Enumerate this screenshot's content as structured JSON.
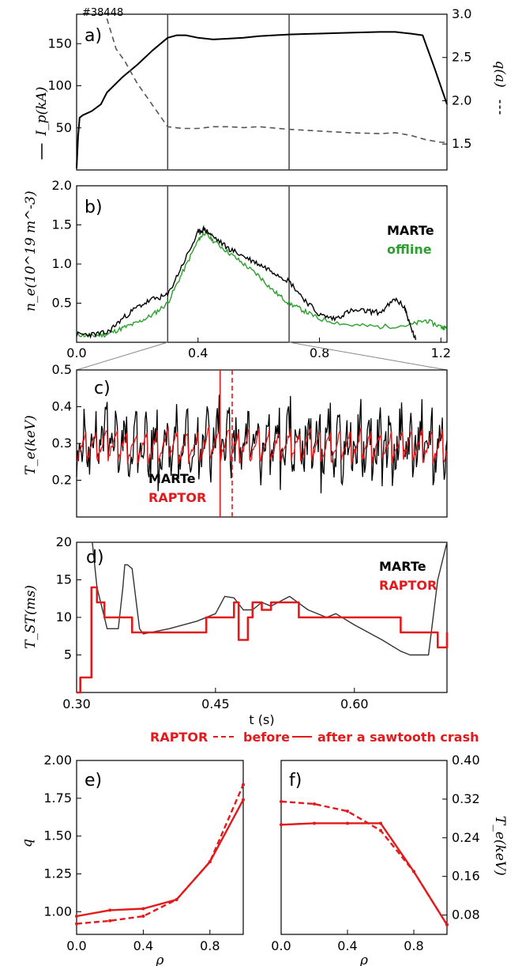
{
  "shot_label": "#38448",
  "caption": {
    "text": "RAPTOR - - -  before  —  after a sawtooth crash",
    "color": "#e31a1c"
  },
  "colors": {
    "black": "#000000",
    "red": "#e31a1c",
    "green": "#2ca02c",
    "gray": "#555555"
  },
  "chart_data": [
    {
      "id": "a",
      "panel_label": "a)",
      "type": "line",
      "ylabel_left": "I_p(kA)",
      "ylabel_right": "q(a)",
      "ylim_left": [
        0,
        185
      ],
      "ylim_right": [
        1.2,
        3.0
      ],
      "xlim": [
        0.0,
        1.22
      ],
      "yticks_left": [
        "50",
        "100",
        "150"
      ],
      "yticks_left_values": [
        50,
        100,
        150
      ],
      "yticks_right": [
        "1.5",
        "2.0",
        "2.5",
        "3.0"
      ],
      "yticks_right_values": [
        1.5,
        2.0,
        2.5,
        3.0
      ],
      "vlines": [
        0.3,
        0.7
      ],
      "series": [
        {
          "style": "solid",
          "axis": "left",
          "x": [
            0.0,
            0.005,
            0.01,
            0.02,
            0.05,
            0.08,
            0.1,
            0.15,
            0.2,
            0.25,
            0.3,
            0.33,
            0.36,
            0.4,
            0.45,
            0.5,
            0.55,
            0.6,
            0.65,
            0.7,
            0.8,
            0.9,
            1.0,
            1.05,
            1.1,
            1.14,
            1.18,
            1.22
          ],
          "y": [
            2,
            40,
            62,
            65,
            70,
            78,
            92,
            110,
            125,
            142,
            157,
            160,
            160,
            157,
            155,
            156,
            157,
            159,
            160,
            161,
            162,
            163,
            164,
            164,
            162,
            160,
            120,
            78
          ]
        },
        {
          "style": "dashed",
          "axis": "right",
          "x": [
            0.1,
            0.13,
            0.16,
            0.2,
            0.25,
            0.3,
            0.35,
            0.4,
            0.45,
            0.5,
            0.55,
            0.6,
            0.7,
            0.8,
            0.9,
            1.0,
            1.05,
            1.1,
            1.15,
            1.2,
            1.22
          ],
          "y": [
            2.95,
            2.6,
            2.45,
            2.2,
            1.95,
            1.7,
            1.68,
            1.68,
            1.7,
            1.7,
            1.69,
            1.7,
            1.67,
            1.65,
            1.63,
            1.62,
            1.63,
            1.6,
            1.55,
            1.52,
            1.52
          ]
        }
      ]
    },
    {
      "id": "b",
      "panel_label": "b)",
      "type": "line",
      "ylabel": "n_e(10^19 m^-3)",
      "ylim": [
        0.0,
        2.0
      ],
      "xlim": [
        0.0,
        1.22
      ],
      "yticks": [
        "0.5",
        "1.0",
        "1.5",
        "2.0"
      ],
      "ytick_values": [
        0.5,
        1.0,
        1.5,
        2.0
      ],
      "xticks": [
        "0.0",
        "0.4",
        "0.8",
        "1.2"
      ],
      "xtick_values": [
        0.0,
        0.4,
        0.8,
        1.2
      ],
      "vlines": [
        0.3,
        0.7
      ],
      "series": [
        {
          "name": "MARTe",
          "x": [
            0.0,
            0.05,
            0.1,
            0.15,
            0.2,
            0.25,
            0.3,
            0.35,
            0.4,
            0.42,
            0.45,
            0.5,
            0.55,
            0.6,
            0.65,
            0.7,
            0.75,
            0.8,
            0.85,
            0.9,
            0.95,
            1.0,
            1.05,
            1.08,
            1.1,
            1.12
          ],
          "y": [
            0.1,
            0.1,
            0.12,
            0.3,
            0.45,
            0.55,
            0.6,
            1.0,
            1.4,
            1.45,
            1.35,
            1.2,
            1.1,
            1.0,
            0.9,
            0.78,
            0.55,
            0.35,
            0.3,
            0.4,
            0.4,
            0.38,
            0.55,
            0.45,
            0.2,
            0.0
          ]
        },
        {
          "name": "offline",
          "x": [
            0.0,
            0.05,
            0.1,
            0.15,
            0.2,
            0.25,
            0.3,
            0.35,
            0.4,
            0.42,
            0.45,
            0.5,
            0.55,
            0.6,
            0.65,
            0.7,
            0.75,
            0.8,
            0.9,
            1.0,
            1.1,
            1.15,
            1.2,
            1.22
          ],
          "y": [
            0.1,
            0.08,
            0.1,
            0.18,
            0.25,
            0.35,
            0.5,
            0.9,
            1.3,
            1.4,
            1.3,
            1.15,
            1.0,
            0.85,
            0.65,
            0.5,
            0.4,
            0.3,
            0.22,
            0.2,
            0.22,
            0.28,
            0.2,
            0.18
          ]
        }
      ]
    },
    {
      "id": "c",
      "panel_label": "c)",
      "type": "line",
      "ylabel": "T_e(keV)",
      "ylim": [
        0.1,
        0.5
      ],
      "xlim": [
        0.3,
        0.7
      ],
      "yticks": [
        "0.2",
        "0.3",
        "0.4",
        "0.5"
      ],
      "ytick_values": [
        0.2,
        0.3,
        0.4,
        0.5
      ],
      "vlines_red": [
        {
          "x": 0.455,
          "style": "solid"
        },
        {
          "x": 0.468,
          "style": "dashed"
        }
      ],
      "series": [
        {
          "name": "MARTe",
          "mean": 0.3,
          "amplitude": 0.08,
          "period": 0.011
        },
        {
          "name": "RAPTOR",
          "mean": 0.295,
          "amplitude": 0.045,
          "period": 0.011
        }
      ]
    },
    {
      "id": "d",
      "panel_label": "d)",
      "type": "line",
      "ylabel": "T_ST(ms)",
      "xlabel": "t (s)",
      "ylim": [
        0,
        20
      ],
      "xlim": [
        0.3,
        0.7
      ],
      "yticks": [
        "5",
        "10",
        "15",
        "20"
      ],
      "ytick_values": [
        5,
        10,
        15,
        20
      ],
      "xticks": [
        "0.30",
        "0.45",
        "0.60"
      ],
      "xtick_values": [
        0.3,
        0.45,
        0.6
      ],
      "series": [
        {
          "name": "MARTe",
          "x": [
            0.317,
            0.322,
            0.333,
            0.338,
            0.345,
            0.35,
            0.352,
            0.355,
            0.36,
            0.368,
            0.372,
            0.38,
            0.4,
            0.43,
            0.45,
            0.46,
            0.47,
            0.48,
            0.49,
            0.5,
            0.51,
            0.53,
            0.55,
            0.57,
            0.58,
            0.6,
            0.63,
            0.65,
            0.66,
            0.67,
            0.68,
            0.69,
            0.7
          ],
          "y": [
            20,
            14,
            8.5,
            8.5,
            8.5,
            14,
            17,
            17,
            16.5,
            8.5,
            7.8,
            8,
            8.5,
            9.5,
            10.5,
            12.8,
            12.6,
            11,
            11,
            12,
            11.5,
            12.8,
            11,
            10,
            10.5,
            9,
            7,
            5.5,
            5,
            5,
            5,
            15,
            20
          ]
        },
        {
          "name": "RAPTOR",
          "step": true,
          "x": [
            0.3,
            0.304,
            0.31,
            0.316,
            0.322,
            0.328,
            0.33,
            0.34,
            0.36,
            0.37,
            0.38,
            0.44,
            0.47,
            0.475,
            0.48,
            0.485,
            0.49,
            0.5,
            0.51,
            0.53,
            0.54,
            0.6,
            0.63,
            0.65,
            0.68,
            0.69,
            0.7
          ],
          "y": [
            0,
            2,
            2,
            14,
            12,
            12,
            10,
            10,
            8,
            8,
            8,
            10,
            12,
            7,
            7,
            10,
            12,
            11,
            12,
            12,
            10,
            10,
            10,
            8,
            8,
            6,
            8
          ]
        }
      ]
    },
    {
      "id": "e",
      "panel_label": "e)",
      "type": "line",
      "ylabel": "q",
      "xlabel": "ρ",
      "ylim": [
        0.85,
        2.0
      ],
      "xlim": [
        0.0,
        1.0
      ],
      "yticks": [
        "1.00",
        "1.25",
        "1.50",
        "1.75",
        "2.00"
      ],
      "ytick_values": [
        1.0,
        1.25,
        1.5,
        1.75,
        2.0
      ],
      "xticks": [
        "0.0",
        "0.4",
        "0.8"
      ],
      "xtick_values": [
        0.0,
        0.4,
        0.8
      ],
      "series": [
        {
          "style": "solid",
          "x": [
            0.0,
            0.2,
            0.4,
            0.6,
            0.8,
            1.0
          ],
          "y": [
            0.97,
            1.01,
            1.02,
            1.08,
            1.33,
            1.74
          ]
        },
        {
          "style": "dashed",
          "x": [
            0.0,
            0.2,
            0.4,
            0.6,
            0.8,
            1.0
          ],
          "y": [
            0.92,
            0.94,
            0.97,
            1.08,
            1.33,
            1.84
          ]
        }
      ]
    },
    {
      "id": "f",
      "panel_label": "f)",
      "type": "line",
      "ylabel": "T_e(keV)",
      "xlabel": "ρ",
      "ylim": [
        0.04,
        0.4
      ],
      "xlim": [
        0.0,
        1.0
      ],
      "yticks": [
        "0.08",
        "0.16",
        "0.24",
        "0.32",
        "0.40"
      ],
      "ytick_values": [
        0.08,
        0.16,
        0.24,
        0.32,
        0.4
      ],
      "xticks": [
        "0.0",
        "0.4",
        "0.8"
      ],
      "xtick_values": [
        0.0,
        0.4,
        0.8
      ],
      "series": [
        {
          "style": "solid",
          "x": [
            0.0,
            0.2,
            0.4,
            0.6,
            0.8,
            1.0
          ],
          "y": [
            0.267,
            0.27,
            0.27,
            0.27,
            0.17,
            0.06
          ]
        },
        {
          "style": "dashed",
          "x": [
            0.0,
            0.2,
            0.4,
            0.6,
            0.8,
            1.0
          ],
          "y": [
            0.315,
            0.31,
            0.295,
            0.255,
            0.17,
            0.06
          ]
        }
      ]
    }
  ]
}
